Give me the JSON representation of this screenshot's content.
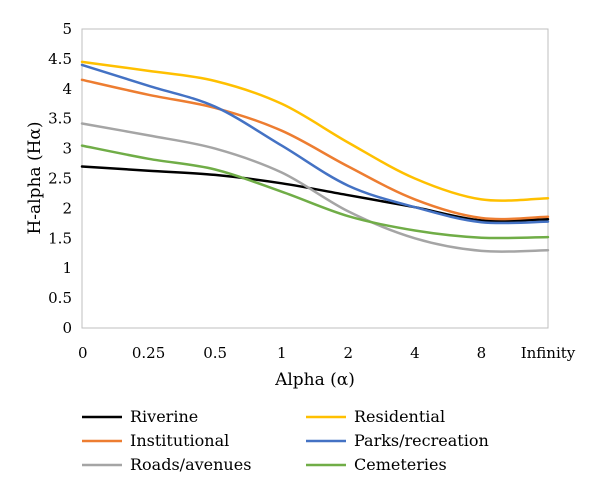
{
  "chart_data": {
    "type": "line",
    "title": "",
    "xlabel": "Alpha (α)",
    "ylabel": "H-alpha (Hα)",
    "ylim": [
      0,
      5
    ],
    "yticks": [
      "0",
      "0.5",
      "1",
      "1.5",
      "2",
      "2.5",
      "3",
      "3.5",
      "4",
      "4.5",
      "5"
    ],
    "categories": [
      "0",
      "0.25",
      "0.5",
      "1",
      "2",
      "4",
      "8",
      "Infinity"
    ],
    "grid": false,
    "legend_position": "bottom",
    "series": [
      {
        "name": "Riverine",
        "color": "#000000",
        "values": [
          2.7,
          2.63,
          2.56,
          2.42,
          2.22,
          2.02,
          1.8,
          1.82
        ]
      },
      {
        "name": "Residential",
        "color": "#FFC000",
        "values": [
          4.45,
          4.3,
          4.13,
          3.75,
          3.1,
          2.5,
          2.15,
          2.17
        ]
      },
      {
        "name": "Institutional",
        "color": "#ED7D31",
        "values": [
          4.15,
          3.9,
          3.68,
          3.3,
          2.7,
          2.15,
          1.84,
          1.86
        ]
      },
      {
        "name": "Parks/recreation",
        "color": "#4472C4",
        "values": [
          4.4,
          4.05,
          3.7,
          3.05,
          2.38,
          2.02,
          1.77,
          1.78
        ]
      },
      {
        "name": "Roads/avenues",
        "color": "#A5A5A5",
        "values": [
          3.42,
          3.22,
          3.0,
          2.6,
          1.95,
          1.5,
          1.29,
          1.3
        ]
      },
      {
        "name": "Cemeteries",
        "color": "#70AD47",
        "values": [
          3.05,
          2.83,
          2.65,
          2.28,
          1.87,
          1.63,
          1.51,
          1.52
        ]
      }
    ]
  }
}
